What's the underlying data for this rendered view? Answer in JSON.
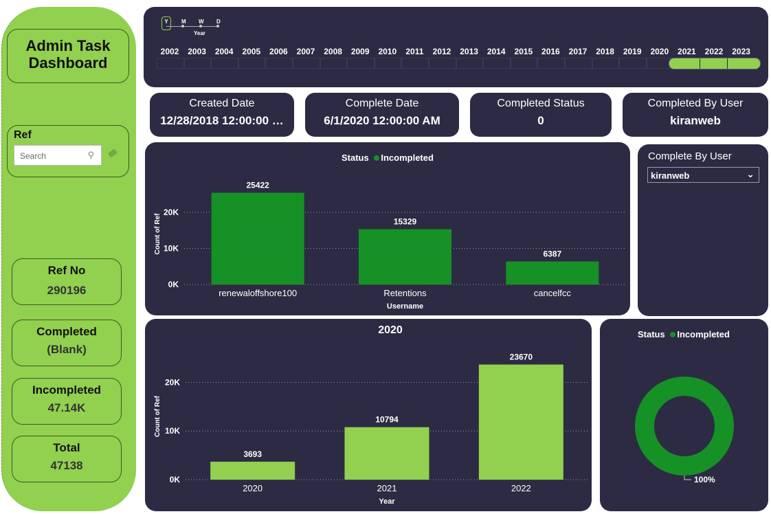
{
  "sidebar": {
    "title_line1": "Admin Task",
    "title_line2": "Dashboard",
    "ref_label": "Ref",
    "ref_search_placeholder": "Search",
    "kpis": [
      {
        "label": "Ref No",
        "value": "290196"
      },
      {
        "label": "Completed",
        "value": "(Blank)"
      },
      {
        "label": "Incompleted",
        "value": "47.14K"
      },
      {
        "label": "Total",
        "value": "47138"
      }
    ]
  },
  "timeline": {
    "granularity": [
      "Y",
      "M",
      "W",
      "D"
    ],
    "granularity_label": "Year",
    "years": [
      "2002",
      "2003",
      "2004",
      "2005",
      "2006",
      "2007",
      "2008",
      "2009",
      "2010",
      "2011",
      "2012",
      "2013",
      "2014",
      "2015",
      "2016",
      "2017",
      "2018",
      "2019",
      "2020",
      "2021",
      "2022",
      "2023"
    ],
    "selected_years": [
      "2021",
      "2022",
      "2023"
    ]
  },
  "cards": [
    {
      "label": "Created Date",
      "value": "12/28/2018 12:00:00 …"
    },
    {
      "label": "Complete Date",
      "value": "6/1/2020 12:00:00 AM"
    },
    {
      "label": "Completed Status",
      "value": "0"
    },
    {
      "label": "Completed By User",
      "value": "kiranweb"
    }
  ],
  "legend": {
    "title": "Status",
    "item": "Incompleted"
  },
  "dropdown": {
    "label": "Complete By User",
    "value": "kiranweb"
  },
  "colors": {
    "dark_green": "#169126",
    "light_green": "#92d050",
    "panel": "#2d2b43"
  },
  "chart_data": [
    {
      "type": "bar",
      "categories": [
        "renewaloffshore100",
        "Retentions",
        "cancelfcc"
      ],
      "values": [
        25422,
        15329,
        6387
      ],
      "xlabel": "Username",
      "ylabel": "Count of Ref",
      "yticks": [
        "0K",
        "10K",
        "20K"
      ],
      "ylim": [
        0,
        28000
      ],
      "legend_title": "Status",
      "legend": [
        "Incompleted"
      ],
      "legend_position": "top-center",
      "grid": true
    },
    {
      "type": "bar",
      "title": "2020",
      "categories": [
        "2020",
        "2021",
        "2022"
      ],
      "values": [
        3693,
        10794,
        23670
      ],
      "xlabel": "Year",
      "ylabel": "Count of Ref",
      "yticks": [
        "0K",
        "10K",
        "20K"
      ],
      "ylim": [
        0,
        26000
      ],
      "grid": true
    },
    {
      "type": "pie",
      "style": "donut",
      "legend_title": "Status",
      "legend": [
        "Incompleted"
      ],
      "values": [
        100
      ],
      "data_label": "100%"
    }
  ]
}
